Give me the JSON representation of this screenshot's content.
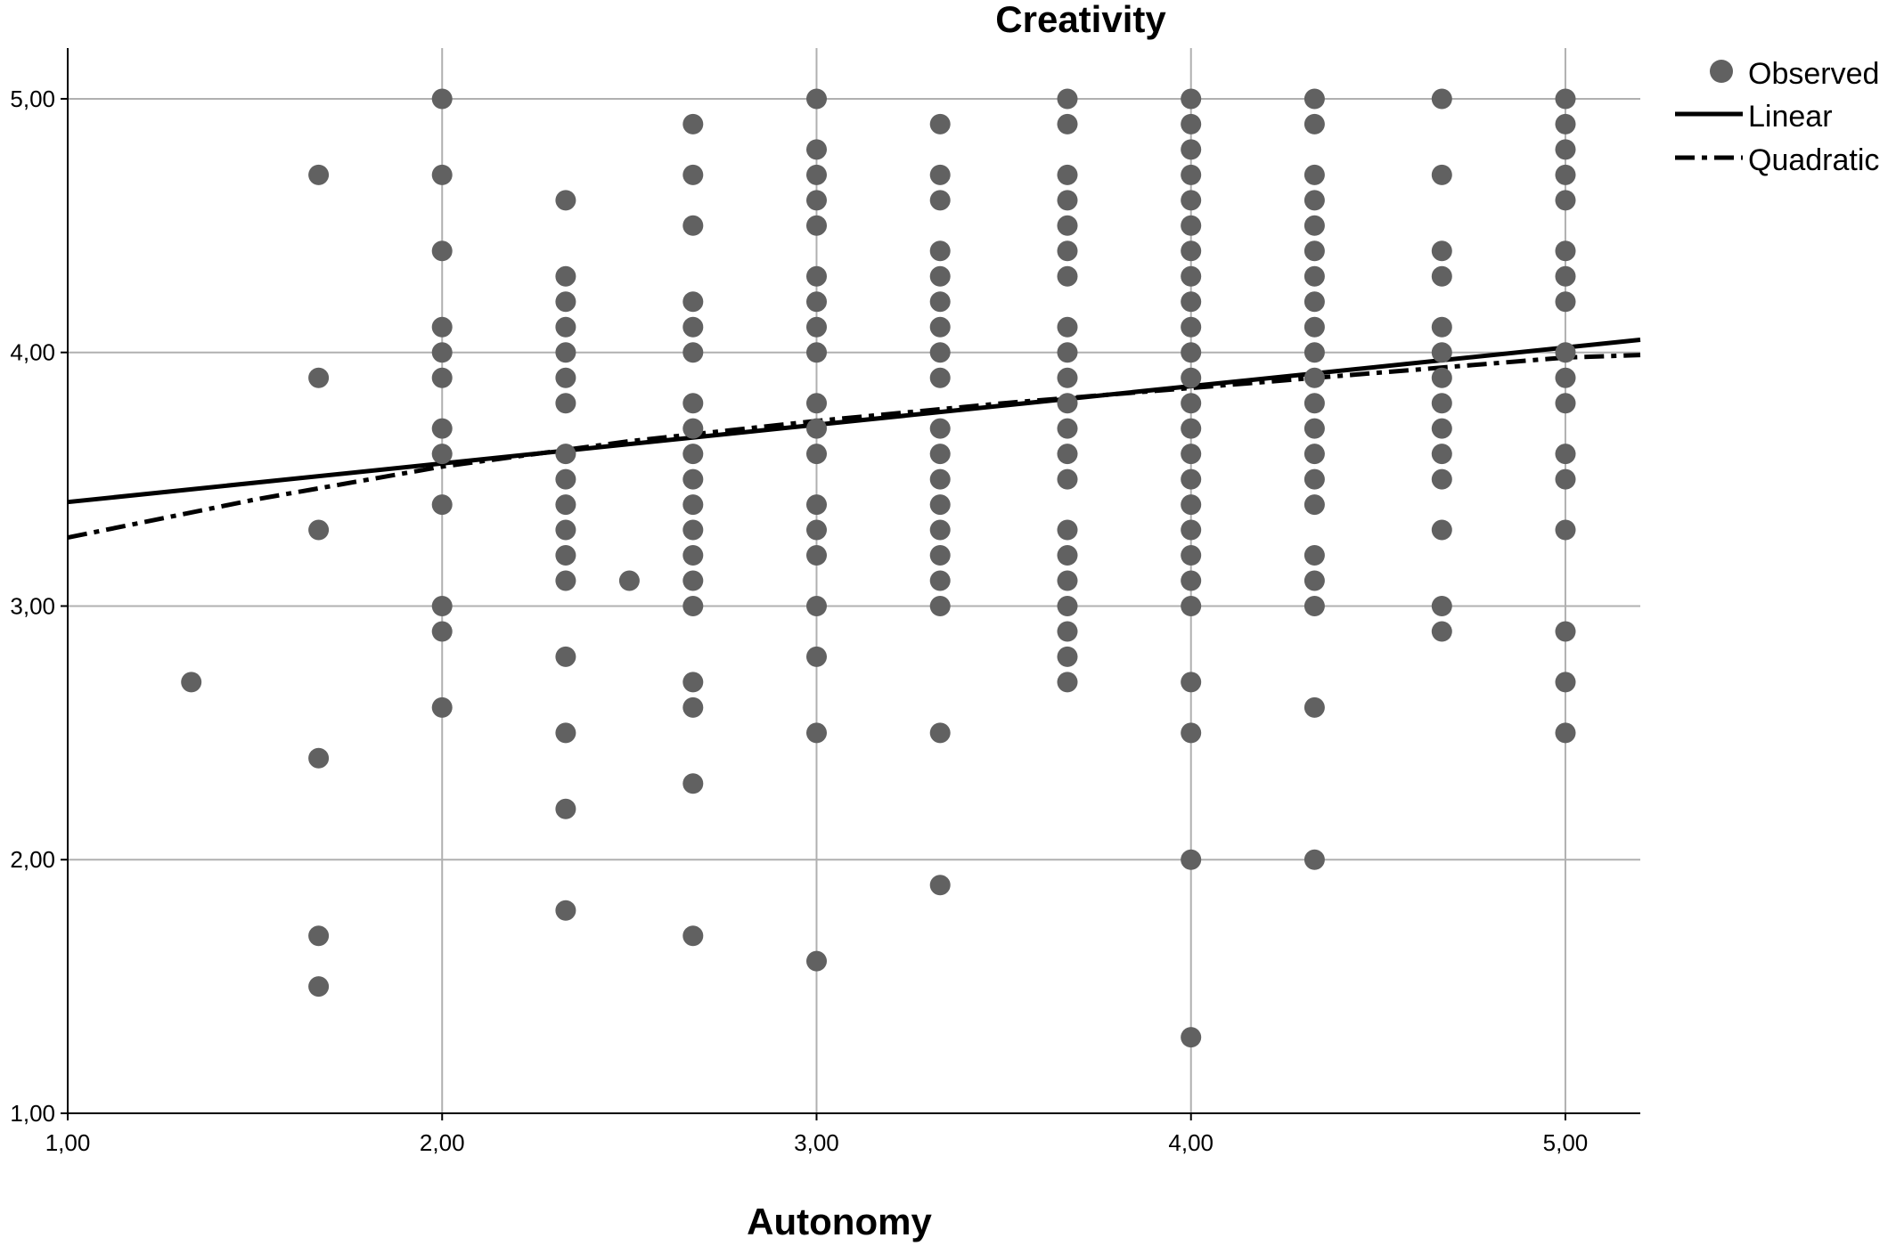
{
  "chart_data": {
    "type": "scatter",
    "title": "Creativity",
    "xlabel": "Autonomy",
    "ylabel": "",
    "xlim": [
      1.0,
      5.2
    ],
    "ylim": [
      1.0,
      5.2
    ],
    "x_ticks": [
      1,
      2,
      3,
      4,
      5
    ],
    "x_tick_labels": [
      "1,00",
      "2,00",
      "3,00",
      "4,00",
      "5,00"
    ],
    "y_ticks": [
      1,
      2,
      3,
      4,
      5
    ],
    "y_tick_labels": [
      "1,00",
      "2,00",
      "3,00",
      "4,00",
      "5,00"
    ],
    "grid": true,
    "legend_position": "top-right outside",
    "series": [
      {
        "name": "Observed",
        "kind": "points",
        "color": "#616161",
        "points": [
          [
            1.33,
            2.7
          ],
          [
            1.67,
            4.7
          ],
          [
            1.67,
            3.9
          ],
          [
            1.67,
            3.3
          ],
          [
            1.67,
            2.4
          ],
          [
            1.67,
            1.7
          ],
          [
            1.67,
            1.5
          ],
          [
            2.0,
            5.0
          ],
          [
            2.0,
            4.7
          ],
          [
            2.0,
            4.4
          ],
          [
            2.0,
            4.1
          ],
          [
            2.0,
            4.0
          ],
          [
            2.0,
            3.9
          ],
          [
            2.0,
            3.7
          ],
          [
            2.0,
            3.6
          ],
          [
            2.0,
            3.4
          ],
          [
            2.0,
            3.0
          ],
          [
            2.0,
            2.9
          ],
          [
            2.0,
            2.6
          ],
          [
            2.33,
            4.6
          ],
          [
            2.33,
            4.3
          ],
          [
            2.33,
            4.2
          ],
          [
            2.33,
            4.1
          ],
          [
            2.33,
            4.0
          ],
          [
            2.33,
            3.9
          ],
          [
            2.33,
            3.8
          ],
          [
            2.33,
            3.6
          ],
          [
            2.33,
            3.5
          ],
          [
            2.33,
            3.4
          ],
          [
            2.33,
            3.3
          ],
          [
            2.33,
            3.2
          ],
          [
            2.33,
            3.1
          ],
          [
            2.33,
            2.8
          ],
          [
            2.33,
            2.5
          ],
          [
            2.33,
            2.2
          ],
          [
            2.33,
            1.8
          ],
          [
            2.5,
            3.1
          ],
          [
            2.67,
            4.9
          ],
          [
            2.67,
            4.7
          ],
          [
            2.67,
            4.5
          ],
          [
            2.67,
            4.2
          ],
          [
            2.67,
            4.1
          ],
          [
            2.67,
            4.0
          ],
          [
            2.67,
            3.8
          ],
          [
            2.67,
            3.7
          ],
          [
            2.67,
            3.6
          ],
          [
            2.67,
            3.5
          ],
          [
            2.67,
            3.4
          ],
          [
            2.67,
            3.3
          ],
          [
            2.67,
            3.2
          ],
          [
            2.67,
            3.1
          ],
          [
            2.67,
            3.0
          ],
          [
            2.67,
            2.7
          ],
          [
            2.67,
            2.6
          ],
          [
            2.67,
            2.3
          ],
          [
            2.67,
            1.7
          ],
          [
            3.0,
            5.0
          ],
          [
            3.0,
            4.8
          ],
          [
            3.0,
            4.7
          ],
          [
            3.0,
            4.6
          ],
          [
            3.0,
            4.5
          ],
          [
            3.0,
            4.3
          ],
          [
            3.0,
            4.2
          ],
          [
            3.0,
            4.1
          ],
          [
            3.0,
            4.0
          ],
          [
            3.0,
            3.8
          ],
          [
            3.0,
            3.7
          ],
          [
            3.0,
            3.6
          ],
          [
            3.0,
            3.4
          ],
          [
            3.0,
            3.3
          ],
          [
            3.0,
            3.2
          ],
          [
            3.0,
            3.0
          ],
          [
            3.0,
            2.8
          ],
          [
            3.0,
            2.5
          ],
          [
            3.0,
            1.6
          ],
          [
            3.33,
            4.9
          ],
          [
            3.33,
            4.7
          ],
          [
            3.33,
            4.6
          ],
          [
            3.33,
            4.4
          ],
          [
            3.33,
            4.3
          ],
          [
            3.33,
            4.2
          ],
          [
            3.33,
            4.1
          ],
          [
            3.33,
            4.0
          ],
          [
            3.33,
            3.9
          ],
          [
            3.33,
            3.7
          ],
          [
            3.33,
            3.6
          ],
          [
            3.33,
            3.5
          ],
          [
            3.33,
            3.4
          ],
          [
            3.33,
            3.3
          ],
          [
            3.33,
            3.2
          ],
          [
            3.33,
            3.1
          ],
          [
            3.33,
            3.0
          ],
          [
            3.33,
            2.5
          ],
          [
            3.33,
            1.9
          ],
          [
            3.67,
            5.0
          ],
          [
            3.67,
            4.9
          ],
          [
            3.67,
            4.7
          ],
          [
            3.67,
            4.6
          ],
          [
            3.67,
            4.5
          ],
          [
            3.67,
            4.4
          ],
          [
            3.67,
            4.3
          ],
          [
            3.67,
            4.1
          ],
          [
            3.67,
            4.0
          ],
          [
            3.67,
            3.9
          ],
          [
            3.67,
            3.8
          ],
          [
            3.67,
            3.7
          ],
          [
            3.67,
            3.6
          ],
          [
            3.67,
            3.5
          ],
          [
            3.67,
            3.3
          ],
          [
            3.67,
            3.2
          ],
          [
            3.67,
            3.1
          ],
          [
            3.67,
            3.0
          ],
          [
            3.67,
            2.9
          ],
          [
            3.67,
            2.8
          ],
          [
            3.67,
            2.7
          ],
          [
            4.0,
            5.0
          ],
          [
            4.0,
            4.9
          ],
          [
            4.0,
            4.8
          ],
          [
            4.0,
            4.7
          ],
          [
            4.0,
            4.6
          ],
          [
            4.0,
            4.5
          ],
          [
            4.0,
            4.4
          ],
          [
            4.0,
            4.3
          ],
          [
            4.0,
            4.2
          ],
          [
            4.0,
            4.1
          ],
          [
            4.0,
            4.0
          ],
          [
            4.0,
            3.9
          ],
          [
            4.0,
            3.8
          ],
          [
            4.0,
            3.7
          ],
          [
            4.0,
            3.6
          ],
          [
            4.0,
            3.5
          ],
          [
            4.0,
            3.4
          ],
          [
            4.0,
            3.3
          ],
          [
            4.0,
            3.2
          ],
          [
            4.0,
            3.1
          ],
          [
            4.0,
            3.0
          ],
          [
            4.0,
            2.7
          ],
          [
            4.0,
            2.5
          ],
          [
            4.0,
            2.0
          ],
          [
            4.0,
            1.3
          ],
          [
            4.33,
            5.0
          ],
          [
            4.33,
            4.9
          ],
          [
            4.33,
            4.7
          ],
          [
            4.33,
            4.6
          ],
          [
            4.33,
            4.5
          ],
          [
            4.33,
            4.4
          ],
          [
            4.33,
            4.3
          ],
          [
            4.33,
            4.2
          ],
          [
            4.33,
            4.1
          ],
          [
            4.33,
            4.0
          ],
          [
            4.33,
            3.9
          ],
          [
            4.33,
            3.8
          ],
          [
            4.33,
            3.7
          ],
          [
            4.33,
            3.6
          ],
          [
            4.33,
            3.5
          ],
          [
            4.33,
            3.4
          ],
          [
            4.33,
            3.2
          ],
          [
            4.33,
            3.1
          ],
          [
            4.33,
            3.0
          ],
          [
            4.33,
            2.6
          ],
          [
            4.33,
            2.0
          ],
          [
            4.67,
            5.0
          ],
          [
            4.67,
            4.7
          ],
          [
            4.67,
            4.4
          ],
          [
            4.67,
            4.3
          ],
          [
            4.67,
            4.1
          ],
          [
            4.67,
            4.0
          ],
          [
            4.67,
            3.9
          ],
          [
            4.67,
            3.8
          ],
          [
            4.67,
            3.7
          ],
          [
            4.67,
            3.6
          ],
          [
            4.67,
            3.5
          ],
          [
            4.67,
            3.3
          ],
          [
            4.67,
            3.0
          ],
          [
            4.67,
            2.9
          ],
          [
            5.0,
            5.0
          ],
          [
            5.0,
            4.9
          ],
          [
            5.0,
            4.8
          ],
          [
            5.0,
            4.7
          ],
          [
            5.0,
            4.6
          ],
          [
            5.0,
            4.4
          ],
          [
            5.0,
            4.3
          ],
          [
            5.0,
            4.2
          ],
          [
            5.0,
            4.0
          ],
          [
            5.0,
            3.9
          ],
          [
            5.0,
            3.8
          ],
          [
            5.0,
            3.6
          ],
          [
            5.0,
            3.5
          ],
          [
            5.0,
            3.3
          ],
          [
            5.0,
            2.9
          ],
          [
            5.0,
            2.7
          ],
          [
            5.0,
            2.5
          ]
        ]
      },
      {
        "name": "Linear",
        "kind": "line",
        "style": "solid",
        "color": "#000000",
        "x": [
          1.0,
          5.2
        ],
        "y": [
          3.41,
          4.05
        ]
      },
      {
        "name": "Quadratic",
        "kind": "line",
        "style": "dash-dot",
        "color": "#000000",
        "x": [
          1.0,
          1.5,
          2.0,
          2.5,
          3.0,
          3.5,
          4.0,
          4.5,
          5.0,
          5.2
        ],
        "y": [
          3.27,
          3.42,
          3.55,
          3.65,
          3.73,
          3.8,
          3.86,
          3.92,
          3.98,
          3.99
        ]
      }
    ]
  }
}
